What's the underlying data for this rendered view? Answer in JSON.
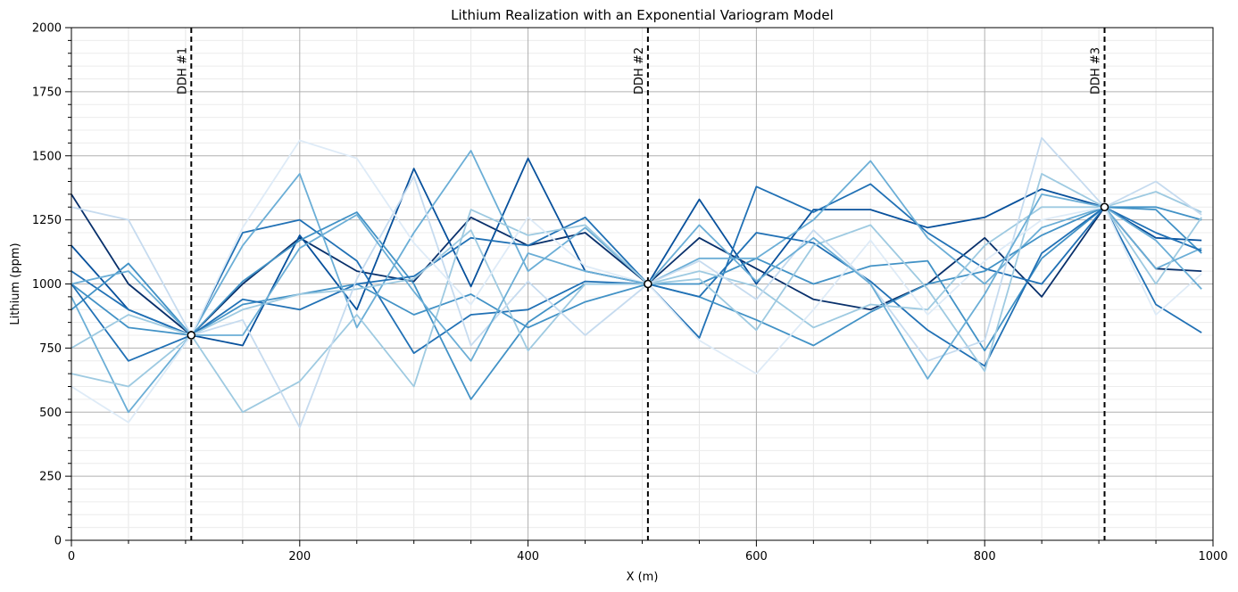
{
  "chart_data": {
    "type": "line",
    "title": "Lithium Realization with an Exponential Variogram Model",
    "xlabel": "X (m)",
    "ylabel": "Lithium (ppm)",
    "xlim": [
      0,
      1000
    ],
    "ylim": [
      0,
      2000
    ],
    "x_ticks": [
      "0",
      "200",
      "400",
      "600",
      "800",
      "1000"
    ],
    "y_ticks": [
      "0",
      "250",
      "500",
      "750",
      "1000",
      "1250",
      "1500",
      "1750",
      "2000"
    ],
    "grid": true,
    "color_scheme": "Blues",
    "drill_holes": [
      {
        "label": "DDH #1",
        "x": 105,
        "value": 800
      },
      {
        "label": "DDH #2",
        "x": 505,
        "value": 1000
      },
      {
        "label": "DDH #3",
        "x": 905,
        "value": 1300
      }
    ],
    "x": [
      0,
      50,
      105,
      150,
      200,
      250,
      300,
      350,
      400,
      450,
      505,
      550,
      600,
      650,
      700,
      750,
      800,
      850,
      905,
      950,
      990
    ],
    "series": [
      {
        "values": [
          1350,
          1000,
          800,
          1000,
          1180,
          1050,
          1010,
          1260,
          1150,
          1200,
          1000,
          1180,
          1060,
          940,
          900,
          1000,
          1180,
          950,
          1300,
          1060,
          1050
        ],
        "color": "#08306b"
      },
      {
        "values": [
          1150,
          900,
          800,
          760,
          1190,
          900,
          1450,
          990,
          1490,
          1050,
          1000,
          1330,
          1000,
          1290,
          1290,
          1220,
          1260,
          1370,
          1300,
          1180,
          1170
        ],
        "color": "#08519c"
      },
      {
        "values": [
          1050,
          900,
          800,
          1200,
          1250,
          1090,
          730,
          880,
          900,
          1010,
          1000,
          790,
          1380,
          1280,
          1390,
          1200,
          1060,
          1000,
          1300,
          920,
          810
        ],
        "color": "#2171b5"
      },
      {
        "values": [
          1000,
          830,
          800,
          920,
          960,
          1000,
          880,
          960,
          830,
          930,
          1000,
          1000,
          1100,
          1000,
          1070,
          1090,
          740,
          1100,
          1300,
          1300,
          1250
        ],
        "color": "#4292c6"
      },
      {
        "values": [
          950,
          500,
          800,
          1150,
          1430,
          830,
          1200,
          1520,
          1050,
          1220,
          1000,
          1100,
          1100,
          1250,
          1480,
          1180,
          1000,
          1220,
          1300,
          1060,
          1140
        ],
        "color": "#6baed6"
      },
      {
        "values": [
          900,
          1080,
          800,
          1010,
          1170,
          1280,
          1000,
          550,
          850,
          1000,
          1000,
          950,
          860,
          760,
          890,
          1000,
          1050,
          1190,
          1300,
          1290,
          1120
        ],
        "color": "#4292c6"
      },
      {
        "values": [
          1000,
          700,
          800,
          940,
          900,
          1000,
          1030,
          1180,
          1150,
          1260,
          1000,
          950,
          1200,
          1160,
          1010,
          820,
          680,
          1120,
          1300,
          1200,
          1130
        ],
        "color": "#2171b5"
      },
      {
        "values": [
          650,
          600,
          800,
          900,
          960,
          980,
          1020,
          1210,
          740,
          1000,
          1000,
          1050,
          990,
          830,
          920,
          900,
          1150,
          1300,
          1300,
          1360,
          1280
        ],
        "color": "#9ecae1"
      },
      {
        "values": [
          750,
          880,
          800,
          500,
          620,
          880,
          600,
          1290,
          1190,
          1230,
          1000,
          1020,
          820,
          1150,
          1230,
          980,
          660,
          1430,
          1300,
          1000,
          1260
        ],
        "color": "#9ecae1"
      },
      {
        "values": [
          1300,
          1250,
          800,
          860,
          440,
          1020,
          1420,
          760,
          1010,
          800,
          1000,
          1090,
          940,
          1210,
          1000,
          700,
          780,
          1570,
          1300,
          1400,
          1270
        ],
        "color": "#c6dbef"
      },
      {
        "values": [
          600,
          460,
          800,
          1220,
          1560,
          1490,
          1160,
          920,
          1260,
          1070,
          1000,
          780,
          650,
          900,
          1170,
          880,
          1090,
          1250,
          1300,
          880,
          1040
        ],
        "color": "#deebf7"
      },
      {
        "values": [
          1000,
          1050,
          800,
          800,
          1140,
          1270,
          970,
          700,
          1120,
          1050,
          1000,
          1230,
          1010,
          1180,
          1000,
          630,
          960,
          1350,
          1300,
          1170,
          980
        ],
        "color": "#6baed6"
      }
    ]
  }
}
